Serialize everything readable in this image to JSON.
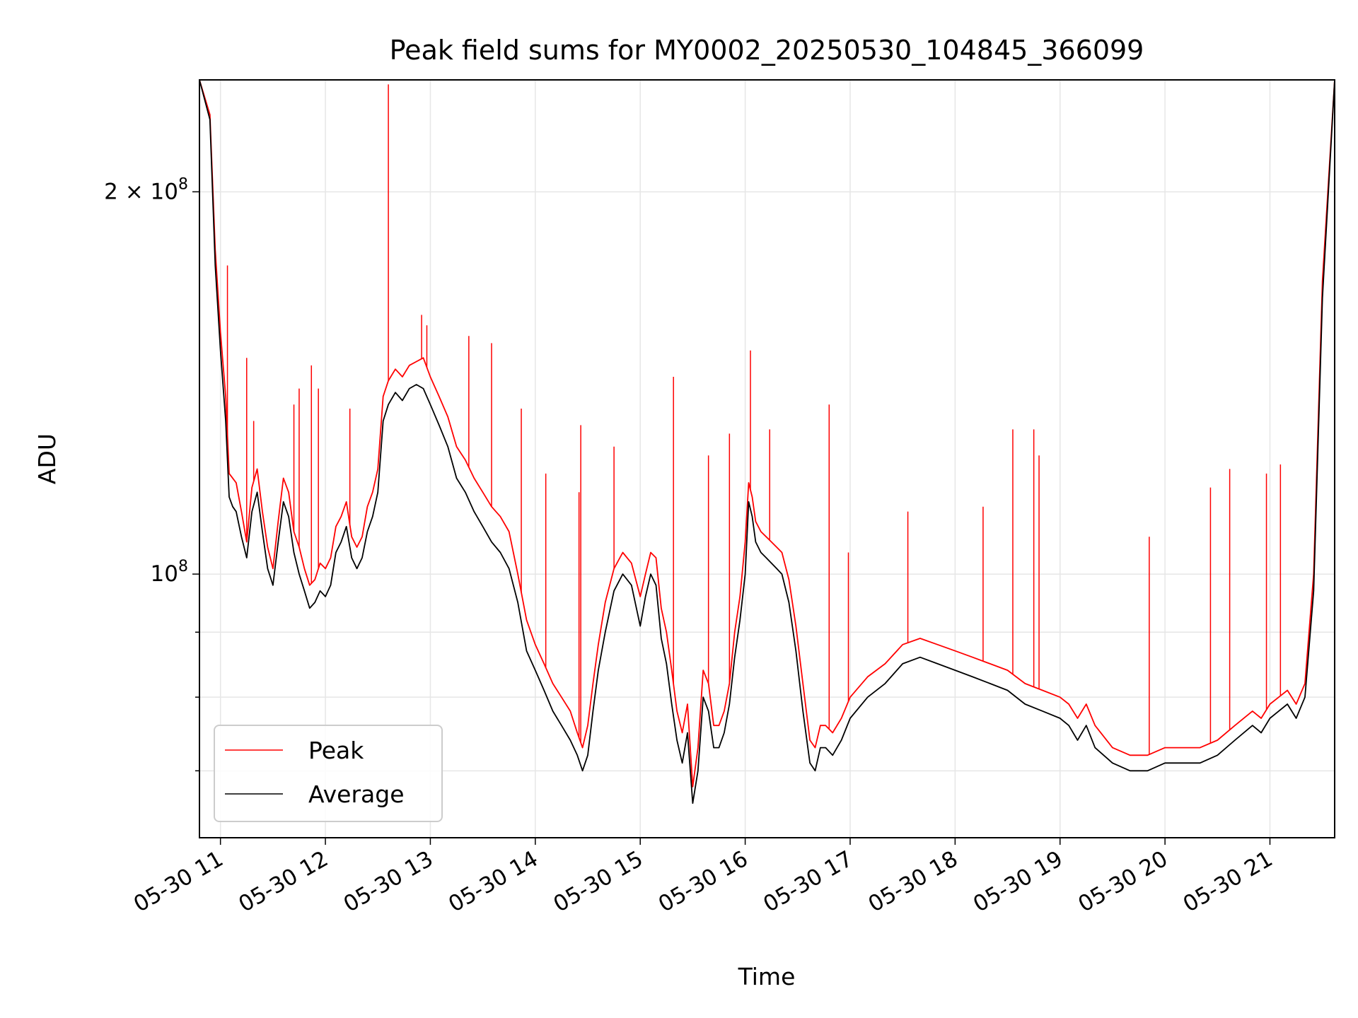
{
  "chart_data": {
    "type": "line",
    "title": "Peak field sums for MY0002_20250530_104845_366099",
    "xlabel": "Time",
    "ylabel": "ADU",
    "yscale": "log",
    "ylim": [
      62000000,
      245000000
    ],
    "xlim": [
      "2025-05-30 10:48",
      "2025-05-30 21:37"
    ],
    "grid": true,
    "legend": {
      "placement": "lower-left",
      "entries": [
        "Peak",
        "Average"
      ]
    },
    "x_ticks": [
      {
        "value": "2025-05-30 11:00",
        "label": "05-30 11"
      },
      {
        "value": "2025-05-30 12:00",
        "label": "05-30 12"
      },
      {
        "value": "2025-05-30 13:00",
        "label": "05-30 13"
      },
      {
        "value": "2025-05-30 14:00",
        "label": "05-30 14"
      },
      {
        "value": "2025-05-30 15:00",
        "label": "05-30 15"
      },
      {
        "value": "2025-05-30 16:00",
        "label": "05-30 16"
      },
      {
        "value": "2025-05-30 17:00",
        "label": "05-30 17"
      },
      {
        "value": "2025-05-30 18:00",
        "label": "05-30 18"
      },
      {
        "value": "2025-05-30 19:00",
        "label": "05-30 19"
      },
      {
        "value": "2025-05-30 20:00",
        "label": "05-30 20"
      },
      {
        "value": "2025-05-30 21:00",
        "label": "05-30 21"
      }
    ],
    "y_ticks": [
      {
        "value": 100000000,
        "label_base": "10",
        "label_exp": "8"
      },
      {
        "value": 200000000,
        "label_base": "2 × 10",
        "label_exp": "8"
      }
    ],
    "y_minor_ticks": [
      70000000,
      80000000,
      90000000
    ],
    "series": [
      {
        "name": "Peak",
        "color": "#ff0000",
        "x": [
          "2025-05-30 10:48",
          "2025-05-30 10:54",
          "2025-05-30 10:57",
          "2025-05-30 11:00",
          "2025-05-30 11:03",
          "2025-05-30 11:05",
          "2025-05-30 11:07",
          "2025-05-30 11:09",
          "2025-05-30 11:12",
          "2025-05-30 11:15",
          "2025-05-30 11:18",
          "2025-05-30 11:21",
          "2025-05-30 11:24",
          "2025-05-30 11:27",
          "2025-05-30 11:30",
          "2025-05-30 11:33",
          "2025-05-30 11:36",
          "2025-05-30 11:39",
          "2025-05-30 11:42",
          "2025-05-30 11:45",
          "2025-05-30 11:48",
          "2025-05-30 11:51",
          "2025-05-30 11:54",
          "2025-05-30 11:57",
          "2025-05-30 12:00",
          "2025-05-30 12:03",
          "2025-05-30 12:06",
          "2025-05-30 12:09",
          "2025-05-30 12:12",
          "2025-05-30 12:15",
          "2025-05-30 12:18",
          "2025-05-30 12:21",
          "2025-05-30 12:24",
          "2025-05-30 12:27",
          "2025-05-30 12:30",
          "2025-05-30 12:33",
          "2025-05-30 12:36",
          "2025-05-30 12:40",
          "2025-05-30 12:44",
          "2025-05-30 12:48",
          "2025-05-30 12:52",
          "2025-05-30 12:56",
          "2025-05-30 13:00",
          "2025-05-30 13:05",
          "2025-05-30 13:10",
          "2025-05-30 13:15",
          "2025-05-30 13:20",
          "2025-05-30 13:25",
          "2025-05-30 13:30",
          "2025-05-30 13:35",
          "2025-05-30 13:40",
          "2025-05-30 13:45",
          "2025-05-30 13:50",
          "2025-05-30 13:55",
          "2025-05-30 14:00",
          "2025-05-30 14:05",
          "2025-05-30 14:10",
          "2025-05-30 14:15",
          "2025-05-30 14:20",
          "2025-05-30 14:24",
          "2025-05-30 14:27",
          "2025-05-30 14:30",
          "2025-05-30 14:33",
          "2025-05-30 14:36",
          "2025-05-30 14:40",
          "2025-05-30 14:45",
          "2025-05-30 14:50",
          "2025-05-30 14:55",
          "2025-05-30 15:00",
          "2025-05-30 15:03",
          "2025-05-30 15:06",
          "2025-05-30 15:09",
          "2025-05-30 15:12",
          "2025-05-30 15:15",
          "2025-05-30 15:18",
          "2025-05-30 15:21",
          "2025-05-30 15:24",
          "2025-05-30 15:27",
          "2025-05-30 15:30",
          "2025-05-30 15:33",
          "2025-05-30 15:36",
          "2025-05-30 15:39",
          "2025-05-30 15:42",
          "2025-05-30 15:45",
          "2025-05-30 15:48",
          "2025-05-30 15:51",
          "2025-05-30 15:54",
          "2025-05-30 15:57",
          "2025-05-30 16:00",
          "2025-05-30 16:02",
          "2025-05-30 16:04",
          "2025-05-30 16:06",
          "2025-05-30 16:09",
          "2025-05-30 16:12",
          "2025-05-30 16:15",
          "2025-05-30 16:18",
          "2025-05-30 16:21",
          "2025-05-30 16:25",
          "2025-05-30 16:29",
          "2025-05-30 16:33",
          "2025-05-30 16:37",
          "2025-05-30 16:40",
          "2025-05-30 16:43",
          "2025-05-30 16:46",
          "2025-05-30 16:50",
          "2025-05-30 16:55",
          "2025-05-30 17:00",
          "2025-05-30 17:10",
          "2025-05-30 17:20",
          "2025-05-30 17:30",
          "2025-05-30 17:40",
          "2025-05-30 17:50",
          "2025-05-30 18:00",
          "2025-05-30 18:10",
          "2025-05-30 18:20",
          "2025-05-30 18:30",
          "2025-05-30 18:40",
          "2025-05-30 18:50",
          "2025-05-30 19:00",
          "2025-05-30 19:05",
          "2025-05-30 19:10",
          "2025-05-30 19:15",
          "2025-05-30 19:20",
          "2025-05-30 19:30",
          "2025-05-30 19:40",
          "2025-05-30 19:50",
          "2025-05-30 20:00",
          "2025-05-30 20:10",
          "2025-05-30 20:20",
          "2025-05-30 20:30",
          "2025-05-30 20:40",
          "2025-05-30 20:50",
          "2025-05-30 20:55",
          "2025-05-30 21:00",
          "2025-05-30 21:05",
          "2025-05-30 21:10",
          "2025-05-30 21:15",
          "2025-05-30 21:20",
          "2025-05-30 21:25",
          "2025-05-30 21:30",
          "2025-05-30 21:37"
        ],
        "values": [
          245000000,
          230000000,
          180000000,
          155000000,
          138000000,
          120000000,
          119000000,
          118000000,
          112000000,
          106000000,
          117000000,
          121000000,
          112000000,
          105000000,
          101000000,
          110000000,
          119000000,
          116000000,
          108000000,
          105000000,
          101000000,
          98000000,
          99000000,
          102000000,
          101000000,
          103000000,
          109000000,
          111000000,
          114000000,
          107000000,
          105000000,
          107000000,
          113000000,
          116000000,
          121000000,
          138000000,
          142000000,
          145000000,
          143000000,
          146000000,
          147000000,
          148000000,
          143000000,
          138000000,
          133000000,
          126000000,
          123000000,
          119000000,
          116000000,
          113000000,
          111000000,
          108000000,
          100000000,
          92000000,
          88000000,
          85000000,
          82000000,
          80000000,
          78000000,
          75000000,
          73000000,
          76000000,
          82000000,
          88000000,
          95000000,
          101000000,
          104000000,
          102000000,
          96000000,
          100000000,
          104000000,
          103000000,
          94000000,
          90000000,
          84000000,
          78000000,
          75000000,
          79000000,
          68000000,
          73000000,
          84000000,
          82000000,
          76000000,
          76000000,
          78000000,
          82000000,
          90000000,
          96000000,
          106000000,
          118000000,
          115000000,
          110000000,
          108000000,
          107000000,
          106000000,
          105000000,
          104000000,
          99000000,
          91000000,
          82000000,
          74000000,
          73000000,
          76000000,
          76000000,
          75000000,
          77000000,
          80000000,
          83000000,
          85000000,
          88000000,
          89000000,
          88000000,
          87000000,
          86000000,
          85000000,
          84000000,
          82000000,
          81000000,
          80000000,
          79000000,
          77000000,
          79000000,
          76000000,
          73000000,
          72000000,
          72000000,
          73000000,
          73000000,
          73000000,
          74000000,
          76000000,
          78000000,
          77000000,
          79000000,
          80000000,
          81000000,
          79000000,
          82000000,
          100000000,
          170000000,
          245000000
        ]
      },
      {
        "name": "Average",
        "color": "#000000",
        "x": [
          "2025-05-30 10:48",
          "2025-05-30 10:54",
          "2025-05-30 10:57",
          "2025-05-30 11:00",
          "2025-05-30 11:03",
          "2025-05-30 11:05",
          "2025-05-30 11:07",
          "2025-05-30 11:09",
          "2025-05-30 11:12",
          "2025-05-30 11:15",
          "2025-05-30 11:18",
          "2025-05-30 11:21",
          "2025-05-30 11:24",
          "2025-05-30 11:27",
          "2025-05-30 11:30",
          "2025-05-30 11:33",
          "2025-05-30 11:36",
          "2025-05-30 11:39",
          "2025-05-30 11:42",
          "2025-05-30 11:45",
          "2025-05-30 11:48",
          "2025-05-30 11:51",
          "2025-05-30 11:54",
          "2025-05-30 11:57",
          "2025-05-30 12:00",
          "2025-05-30 12:03",
          "2025-05-30 12:06",
          "2025-05-30 12:09",
          "2025-05-30 12:12",
          "2025-05-30 12:15",
          "2025-05-30 12:18",
          "2025-05-30 12:21",
          "2025-05-30 12:24",
          "2025-05-30 12:27",
          "2025-05-30 12:30",
          "2025-05-30 12:33",
          "2025-05-30 12:36",
          "2025-05-30 12:40",
          "2025-05-30 12:44",
          "2025-05-30 12:48",
          "2025-05-30 12:52",
          "2025-05-30 12:56",
          "2025-05-30 13:00",
          "2025-05-30 13:05",
          "2025-05-30 13:10",
          "2025-05-30 13:15",
          "2025-05-30 13:20",
          "2025-05-30 13:25",
          "2025-05-30 13:30",
          "2025-05-30 13:35",
          "2025-05-30 13:40",
          "2025-05-30 13:45",
          "2025-05-30 13:50",
          "2025-05-30 13:55",
          "2025-05-30 14:00",
          "2025-05-30 14:05",
          "2025-05-30 14:10",
          "2025-05-30 14:15",
          "2025-05-30 14:20",
          "2025-05-30 14:24",
          "2025-05-30 14:27",
          "2025-05-30 14:30",
          "2025-05-30 14:33",
          "2025-05-30 14:36",
          "2025-05-30 14:40",
          "2025-05-30 14:45",
          "2025-05-30 14:50",
          "2025-05-30 14:55",
          "2025-05-30 15:00",
          "2025-05-30 15:03",
          "2025-05-30 15:06",
          "2025-05-30 15:09",
          "2025-05-30 15:12",
          "2025-05-30 15:15",
          "2025-05-30 15:18",
          "2025-05-30 15:21",
          "2025-05-30 15:24",
          "2025-05-30 15:27",
          "2025-05-30 15:30",
          "2025-05-30 15:33",
          "2025-05-30 15:36",
          "2025-05-30 15:39",
          "2025-05-30 15:42",
          "2025-05-30 15:45",
          "2025-05-30 15:48",
          "2025-05-30 15:51",
          "2025-05-30 15:54",
          "2025-05-30 15:57",
          "2025-05-30 16:00",
          "2025-05-30 16:02",
          "2025-05-30 16:04",
          "2025-05-30 16:06",
          "2025-05-30 16:09",
          "2025-05-30 16:12",
          "2025-05-30 16:15",
          "2025-05-30 16:18",
          "2025-05-30 16:21",
          "2025-05-30 16:25",
          "2025-05-30 16:29",
          "2025-05-30 16:33",
          "2025-05-30 16:37",
          "2025-05-30 16:40",
          "2025-05-30 16:43",
          "2025-05-30 16:46",
          "2025-05-30 16:50",
          "2025-05-30 16:55",
          "2025-05-30 17:00",
          "2025-05-30 17:10",
          "2025-05-30 17:20",
          "2025-05-30 17:30",
          "2025-05-30 17:40",
          "2025-05-30 17:50",
          "2025-05-30 18:00",
          "2025-05-30 18:10",
          "2025-05-30 18:20",
          "2025-05-30 18:30",
          "2025-05-30 18:40",
          "2025-05-30 18:50",
          "2025-05-30 19:00",
          "2025-05-30 19:05",
          "2025-05-30 19:10",
          "2025-05-30 19:15",
          "2025-05-30 19:20",
          "2025-05-30 19:30",
          "2025-05-30 19:40",
          "2025-05-30 19:50",
          "2025-05-30 20:00",
          "2025-05-30 20:10",
          "2025-05-30 20:20",
          "2025-05-30 20:30",
          "2025-05-30 20:40",
          "2025-05-30 20:50",
          "2025-05-30 20:55",
          "2025-05-30 21:00",
          "2025-05-30 21:05",
          "2025-05-30 21:10",
          "2025-05-30 21:15",
          "2025-05-30 21:20",
          "2025-05-30 21:25",
          "2025-05-30 21:30",
          "2025-05-30 21:37"
        ],
        "values": [
          245000000,
          228000000,
          175000000,
          150000000,
          132000000,
          115000000,
          113000000,
          112000000,
          107000000,
          103000000,
          112000000,
          116000000,
          108000000,
          101000000,
          98000000,
          106000000,
          114000000,
          111000000,
          104000000,
          100000000,
          97000000,
          94000000,
          95000000,
          97000000,
          96000000,
          98000000,
          104000000,
          106000000,
          109000000,
          103000000,
          101000000,
          103000000,
          108000000,
          111000000,
          116000000,
          132000000,
          136000000,
          139000000,
          137000000,
          140000000,
          141000000,
          140000000,
          136000000,
          131000000,
          126000000,
          119000000,
          116000000,
          112000000,
          109000000,
          106000000,
          104000000,
          101000000,
          95000000,
          87000000,
          84000000,
          81000000,
          78000000,
          76000000,
          74000000,
          72000000,
          70000000,
          72000000,
          78000000,
          84000000,
          90000000,
          97000000,
          100000000,
          98000000,
          91000000,
          96000000,
          100000000,
          98000000,
          89000000,
          85000000,
          79000000,
          74000000,
          71000000,
          75000000,
          66000000,
          70000000,
          80000000,
          78000000,
          73000000,
          73000000,
          75000000,
          79000000,
          86000000,
          92000000,
          100000000,
          114000000,
          111000000,
          106000000,
          104000000,
          103000000,
          102000000,
          101000000,
          100000000,
          95000000,
          87000000,
          78000000,
          71000000,
          70000000,
          73000000,
          73000000,
          72000000,
          74000000,
          77000000,
          80000000,
          82000000,
          85000000,
          86000000,
          85000000,
          84000000,
          83000000,
          82000000,
          81000000,
          79000000,
          78000000,
          77000000,
          76000000,
          74000000,
          76000000,
          73000000,
          71000000,
          70000000,
          70000000,
          71000000,
          71000000,
          71000000,
          72000000,
          74000000,
          76000000,
          75000000,
          77000000,
          78000000,
          79000000,
          77000000,
          80000000,
          97000000,
          165000000,
          245000000
        ]
      }
    ],
    "peak_spikes": [
      {
        "x": "2025-05-30 11:04",
        "value": 175000000
      },
      {
        "x": "2025-05-30 11:15",
        "value": 148000000
      },
      {
        "x": "2025-05-30 11:19",
        "value": 132000000
      },
      {
        "x": "2025-05-30 11:42",
        "value": 136000000
      },
      {
        "x": "2025-05-30 11:45",
        "value": 140000000
      },
      {
        "x": "2025-05-30 11:52",
        "value": 146000000
      },
      {
        "x": "2025-05-30 11:56",
        "value": 140000000
      },
      {
        "x": "2025-05-30 12:14",
        "value": 135000000
      },
      {
        "x": "2025-05-30 12:36",
        "value": 243000000
      },
      {
        "x": "2025-05-30 12:55",
        "value": 160000000
      },
      {
        "x": "2025-05-30 12:58",
        "value": 157000000
      },
      {
        "x": "2025-05-30 13:22",
        "value": 154000000
      },
      {
        "x": "2025-05-30 13:35",
        "value": 152000000
      },
      {
        "x": "2025-05-30 13:52",
        "value": 135000000
      },
      {
        "x": "2025-05-30 14:06",
        "value": 120000000
      },
      {
        "x": "2025-05-30 14:25",
        "value": 116000000
      },
      {
        "x": "2025-05-30 14:26",
        "value": 131000000
      },
      {
        "x": "2025-05-30 14:45",
        "value": 126000000
      },
      {
        "x": "2025-05-30 15:19",
        "value": 143000000
      },
      {
        "x": "2025-05-30 15:39",
        "value": 124000000
      },
      {
        "x": "2025-05-30 15:51",
        "value": 129000000
      },
      {
        "x": "2025-05-30 16:03",
        "value": 150000000
      },
      {
        "x": "2025-05-30 16:14",
        "value": 130000000
      },
      {
        "x": "2025-05-30 16:48",
        "value": 136000000
      },
      {
        "x": "2025-05-30 16:59",
        "value": 104000000
      },
      {
        "x": "2025-05-30 17:33",
        "value": 112000000
      },
      {
        "x": "2025-05-30 18:16",
        "value": 113000000
      },
      {
        "x": "2025-05-30 18:33",
        "value": 130000000
      },
      {
        "x": "2025-05-30 18:45",
        "value": 130000000
      },
      {
        "x": "2025-05-30 18:48",
        "value": 124000000
      },
      {
        "x": "2025-05-30 19:51",
        "value": 107000000
      },
      {
        "x": "2025-05-30 20:26",
        "value": 117000000
      },
      {
        "x": "2025-05-30 20:37",
        "value": 121000000
      },
      {
        "x": "2025-05-30 20:58",
        "value": 120000000
      },
      {
        "x": "2025-05-30 21:06",
        "value": 122000000
      }
    ]
  }
}
